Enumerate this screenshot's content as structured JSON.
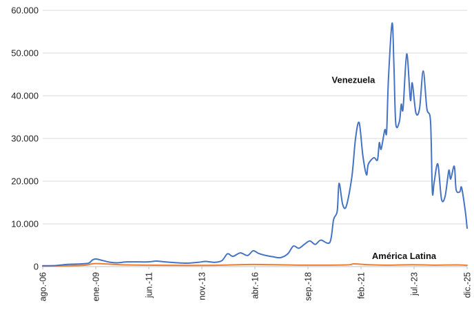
{
  "chart_data": {
    "type": "line",
    "title": "",
    "xlabel": "",
    "ylabel": "",
    "x_start": "2006-08",
    "x_end": "2025-12",
    "xticks": [
      {
        "label": "ago.-06",
        "date": "2006-08"
      },
      {
        "label": "ene.-09",
        "date": "2009-01"
      },
      {
        "label": "jun.-11",
        "date": "2011-06"
      },
      {
        "label": "nov.-13",
        "date": "2013-11"
      },
      {
        "label": "abr.-16",
        "date": "2016-04"
      },
      {
        "label": "sep.-18",
        "date": "2018-09"
      },
      {
        "label": "feb.-21",
        "date": "2021-02"
      },
      {
        "label": "jul.-23",
        "date": "2023-07"
      },
      {
        "label": "dic.-25",
        "date": "2025-12"
      }
    ],
    "yticks": [
      {
        "label": "0",
        "value": 0
      },
      {
        "label": "10.000",
        "value": 10000
      },
      {
        "label": "20.000",
        "value": 20000
      },
      {
        "label": "30.000",
        "value": 30000
      },
      {
        "label": "40.000",
        "value": 40000
      },
      {
        "label": "50.000",
        "value": 50000
      },
      {
        "label": "60.000",
        "value": 60000
      }
    ],
    "ylim": [
      0,
      60000
    ],
    "grid": true,
    "legend": "none",
    "series": [
      {
        "name": "Venezuela",
        "color": "#4472C4",
        "points": [
          [
            "2006-08",
            200
          ],
          [
            "2007-03",
            250
          ],
          [
            "2007-09",
            500
          ],
          [
            "2008-03",
            600
          ],
          [
            "2008-09",
            800
          ],
          [
            "2008-11",
            1500
          ],
          [
            "2009-01",
            1800
          ],
          [
            "2009-05",
            1400
          ],
          [
            "2009-09",
            1000
          ],
          [
            "2010-01",
            900
          ],
          [
            "2010-06",
            1100
          ],
          [
            "2011-01",
            1100
          ],
          [
            "2011-06",
            1100
          ],
          [
            "2011-10",
            1300
          ],
          [
            "2012-03",
            1100
          ],
          [
            "2012-09",
            900
          ],
          [
            "2013-03",
            800
          ],
          [
            "2013-09",
            1000
          ],
          [
            "2014-01",
            1200
          ],
          [
            "2014-06",
            1000
          ],
          [
            "2014-10",
            1400
          ],
          [
            "2015-01",
            3000
          ],
          [
            "2015-04",
            2400
          ],
          [
            "2015-08",
            3200
          ],
          [
            "2015-12",
            2600
          ],
          [
            "2016-03",
            3700
          ],
          [
            "2016-06",
            3100
          ],
          [
            "2016-10",
            2600
          ],
          [
            "2017-02",
            2300
          ],
          [
            "2017-06",
            2100
          ],
          [
            "2017-10",
            3000
          ],
          [
            "2018-01",
            4800
          ],
          [
            "2018-04",
            4300
          ],
          [
            "2018-07",
            5200
          ],
          [
            "2018-10",
            6000
          ],
          [
            "2019-01",
            5200
          ],
          [
            "2019-04",
            6200
          ],
          [
            "2019-09",
            5700
          ],
          [
            "2019-11",
            11000
          ],
          [
            "2020-01",
            13000
          ],
          [
            "2020-02",
            19500
          ],
          [
            "2020-04",
            14500
          ],
          [
            "2020-06",
            14200
          ],
          [
            "2020-09",
            21000
          ],
          [
            "2020-11",
            30000
          ],
          [
            "2021-01",
            33700
          ],
          [
            "2021-03",
            26000
          ],
          [
            "2021-05",
            21500
          ],
          [
            "2021-06",
            24000
          ],
          [
            "2021-09",
            25500
          ],
          [
            "2021-11",
            25000
          ],
          [
            "2021-12",
            29000
          ],
          [
            "2022-01",
            27500
          ],
          [
            "2022-03",
            32000
          ],
          [
            "2022-04",
            31500
          ],
          [
            "2022-05",
            44000
          ],
          [
            "2022-07",
            57000
          ],
          [
            "2022-08",
            47000
          ],
          [
            "2022-09",
            33500
          ],
          [
            "2022-11",
            34000
          ],
          [
            "2022-12",
            38000
          ],
          [
            "2023-01",
            37000
          ],
          [
            "2023-03",
            49800
          ],
          [
            "2023-05",
            39000
          ],
          [
            "2023-06",
            43000
          ],
          [
            "2023-08",
            36000
          ],
          [
            "2023-10",
            37000
          ],
          [
            "2023-12",
            45800
          ],
          [
            "2024-02",
            37000
          ],
          [
            "2024-04",
            34000
          ],
          [
            "2024-05",
            17500
          ],
          [
            "2024-06",
            19800
          ],
          [
            "2024-08",
            24000
          ],
          [
            "2024-10",
            15800
          ],
          [
            "2024-12",
            16500
          ],
          [
            "2025-02",
            22500
          ],
          [
            "2025-03",
            20500
          ],
          [
            "2025-05",
            23500
          ],
          [
            "2025-06",
            18000
          ],
          [
            "2025-08",
            17500
          ],
          [
            "2025-09",
            18500
          ],
          [
            "2025-11",
            13000
          ],
          [
            "2025-12",
            9000
          ]
        ]
      },
      {
        "name": "América Latina",
        "color": "#ED7D31",
        "points": [
          [
            "2006-08",
            100
          ],
          [
            "2008-06",
            300
          ],
          [
            "2009-01",
            700
          ],
          [
            "2010-06",
            400
          ],
          [
            "2012-06",
            300
          ],
          [
            "2014-06",
            300
          ],
          [
            "2016-03",
            500
          ],
          [
            "2018-06",
            350
          ],
          [
            "2020-06",
            400
          ],
          [
            "2020-10",
            650
          ],
          [
            "2021-06",
            450
          ],
          [
            "2022-06",
            350
          ],
          [
            "2023-06",
            450
          ],
          [
            "2024-06",
            350
          ],
          [
            "2025-06",
            400
          ],
          [
            "2025-12",
            300
          ]
        ]
      }
    ],
    "annotations": [
      {
        "text": "Venezuela",
        "date": "2019-10",
        "value": 43000
      },
      {
        "text": "América Latina",
        "date": "2021-08",
        "value": 1800
      }
    ]
  }
}
